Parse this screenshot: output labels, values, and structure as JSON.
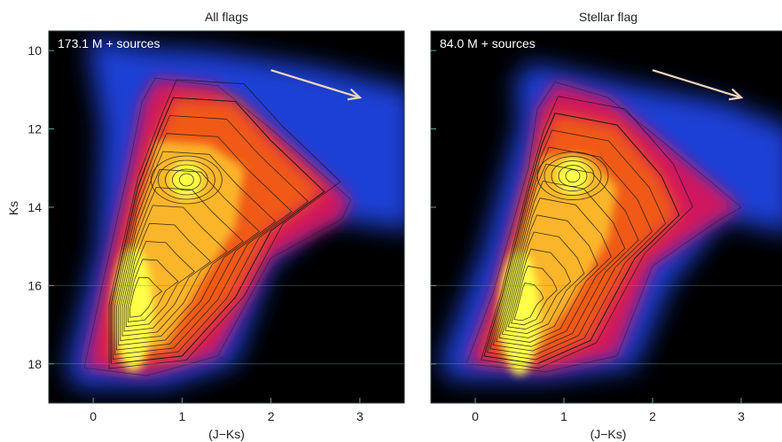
{
  "chart_data": [
    {
      "type": "heatmap",
      "title": "All flags",
      "annotation": "173.1 M + sources",
      "xlabel": "(J−Ks)",
      "ylabel": "Ks",
      "xlim": [
        -0.5,
        3.5
      ],
      "ylim": [
        19,
        9.5
      ],
      "y_inverted": true,
      "xticks": [
        0,
        1,
        2,
        3
      ],
      "yticks": [
        10,
        12,
        14,
        16,
        18
      ],
      "density_peaks": [
        {
          "x": 0.45,
          "y": 16.6
        },
        {
          "x": 1.05,
          "y": 13.3
        }
      ],
      "arrow": {
        "from": [
          2.0,
          10.5
        ],
        "to": [
          3.0,
          11.2
        ]
      },
      "colormap": [
        "#000000",
        "#1c3fd6",
        "#d0125e",
        "#f05a14",
        "#ffff4a"
      ],
      "contours": true,
      "grid": false
    },
    {
      "type": "heatmap",
      "title": "Stellar flag",
      "annotation": "84.0 M + sources",
      "xlabel": "(J−Ks)",
      "ylabel": "",
      "xlim": [
        -0.5,
        3.5
      ],
      "ylim": [
        19,
        9.5
      ],
      "y_inverted": true,
      "xticks": [
        0,
        1,
        2,
        3
      ],
      "yticks": [
        10,
        12,
        14,
        16,
        18
      ],
      "density_peaks": [
        {
          "x": 0.5,
          "y": 16.7
        },
        {
          "x": 1.1,
          "y": 13.2
        }
      ],
      "arrow": {
        "from": [
          2.0,
          10.5
        ],
        "to": [
          3.0,
          11.2
        ]
      },
      "colormap": [
        "#000000",
        "#1c3fd6",
        "#d0125e",
        "#f05a14",
        "#ffff4a"
      ],
      "contours": true,
      "grid": false
    }
  ]
}
